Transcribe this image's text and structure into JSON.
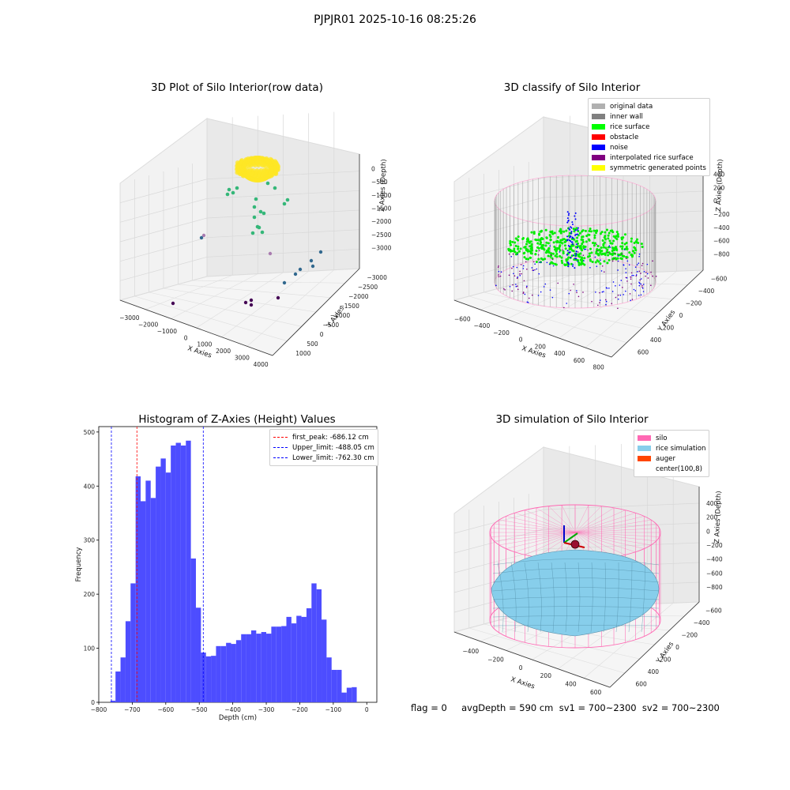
{
  "suptitle": "PJPJR01 2025-10-16 08:25:26",
  "footer": "flag = 0     avgDepth = 590 cm  sv1 = 700~2300  sv2 = 700~2300",
  "chart_data": [
    {
      "type": "scatter",
      "title": "3D Plot of Silo Interior(row data)",
      "xlabel": "X Axies",
      "ylabel": "Y Axies",
      "zlabel": "Z Axies (Depth)",
      "x_ticks": [
        "−3000",
        "−2000",
        "−1000",
        "0",
        "1000",
        "2000",
        "3000",
        "4000"
      ],
      "y_ticks": [
        "1000",
        "500",
        "0",
        "−500",
        "−1000",
        "−1500",
        "−2000",
        "−2500",
        "−3000"
      ],
      "z_ticks": [
        "0",
        "−500",
        "−1000",
        "−1500",
        "−2000",
        "−2500",
        "−3000"
      ],
      "colormap": [
        "#440154",
        "#31688e",
        "#35b779",
        "#fde725"
      ]
    },
    {
      "type": "scatter",
      "title": "3D classify of Silo Interior",
      "xlabel": "X Axies",
      "ylabel": "Y Axies",
      "zlabel": "Z Axies (Depth)",
      "x_ticks": [
        "−600",
        "−400",
        "−200",
        "0",
        "200",
        "400",
        "600",
        "800"
      ],
      "y_ticks": [
        "600",
        "400",
        "200",
        "0",
        "−200",
        "−400",
        "−600"
      ],
      "z_ticks": [
        "400",
        "200",
        "0",
        "−200",
        "−400",
        "−600",
        "−800"
      ],
      "legend": [
        {
          "label": "original data",
          "color": "#b0b0b0"
        },
        {
          "label": "inner wall",
          "color": "#808080"
        },
        {
          "label": "rice surface",
          "color": "#00ff00"
        },
        {
          "label": "obstacle",
          "color": "#ff0000"
        },
        {
          "label": "noise",
          "color": "#0000ff"
        },
        {
          "label": "interpolated rice surface",
          "color": "#800080"
        },
        {
          "label": "symmetric generated points",
          "color": "#ffff00"
        }
      ]
    },
    {
      "type": "bar",
      "title": "Histogram of Z-Axies (Height) Values",
      "xlabel": "Depth (cm)",
      "ylabel": "Frequency",
      "xlim": [
        -800,
        30
      ],
      "ylim": [
        0,
        510
      ],
      "bin_width": 15,
      "bin_start": -765,
      "values": [
        3,
        57,
        83,
        150,
        220,
        418,
        372,
        410,
        378,
        436,
        451,
        425,
        475,
        480,
        475,
        484,
        266,
        175,
        92,
        85,
        86,
        104,
        104,
        110,
        108,
        115,
        126,
        126,
        133,
        127,
        130,
        127,
        140,
        140,
        141,
        158,
        146,
        160,
        158,
        174,
        220,
        209,
        153,
        83,
        60,
        60,
        18,
        27,
        28
      ],
      "bar_color": "#4d4dff",
      "x_ticks": [
        "−800",
        "−700",
        "−600",
        "−500",
        "−400",
        "−300",
        "−200",
        "−100",
        "0"
      ],
      "y_ticks": [
        "0",
        "100",
        "200",
        "300",
        "400",
        "500"
      ],
      "vlines": [
        {
          "label": "first_peak: -686.12 cm",
          "x": -686.12,
          "color": "#ff0000"
        },
        {
          "label": "Upper_limit: -488.05 cm",
          "x": -488.05,
          "color": "#0000ff"
        },
        {
          "label": "Lower_limit: -762.30 cm",
          "x": -762.3,
          "color": "#0000ff"
        }
      ]
    },
    {
      "type": "surface",
      "title": "3D simulation of Silo Interior",
      "xlabel": "X Axies",
      "ylabel": "Y Axies",
      "zlabel": "Z Axies (Depth)",
      "x_ticks": [
        "−400",
        "−200",
        "0",
        "200",
        "400",
        "600"
      ],
      "y_ticks": [
        "600",
        "400",
        "200",
        "0",
        "−200",
        "−400",
        "−600"
      ],
      "z_ticks": [
        "400",
        "200",
        "0",
        "−200",
        "−400",
        "−600",
        "−800"
      ],
      "legend": [
        {
          "label": "silo",
          "color": "#ff69b4"
        },
        {
          "label": "rice simulation",
          "color": "#87ceeb"
        },
        {
          "label": "auger",
          "color": "#ff4500"
        },
        {
          "label": "center(100,8)",
          "color": "#ffffff"
        }
      ]
    }
  ]
}
